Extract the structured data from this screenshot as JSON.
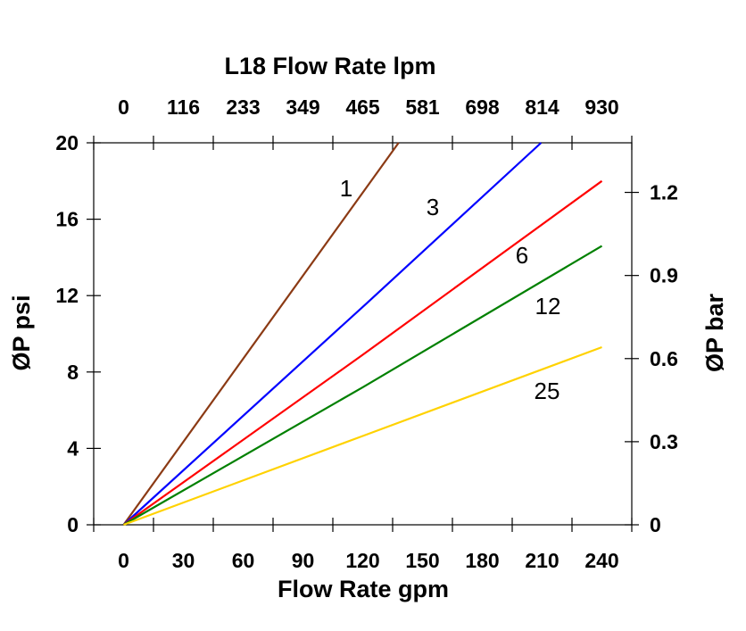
{
  "chart_data": {
    "type": "line",
    "title": "L18 Flow Rate lpm",
    "xlabel": "Flow Rate gpm",
    "ylabel": "ØP psi",
    "y2label": "ØP bar",
    "x_ticks": [
      0,
      30,
      60,
      90,
      120,
      150,
      180,
      210,
      240
    ],
    "x2_ticks": [
      "0",
      "116",
      "233",
      "349",
      "465",
      "581",
      "698",
      "814",
      "930"
    ],
    "y_ticks": [
      0,
      4,
      8,
      12,
      16,
      20
    ],
    "y2_ticks": [
      "0",
      "0.3",
      "0.6",
      "0.9",
      "1.2"
    ],
    "xlim": [
      -15,
      255
    ],
    "ylim": [
      0,
      20
    ],
    "y2lim": [
      0,
      1.379
    ],
    "grid": false,
    "series": [
      {
        "name": "1",
        "color": "#8B3A14",
        "x": [
          0,
          138
        ],
        "y": [
          0,
          20
        ]
      },
      {
        "name": "3",
        "color": "#0000FF",
        "x": [
          0,
          122,
          209.5
        ],
        "y": [
          0,
          11.6,
          20
        ]
      },
      {
        "name": "6",
        "color": "#FF0000",
        "x": [
          0,
          120,
          240
        ],
        "y": [
          0,
          8.9,
          18
        ]
      },
      {
        "name": "12",
        "color": "#008000",
        "x": [
          0,
          120,
          240
        ],
        "y": [
          0,
          7.2,
          14.6
        ]
      },
      {
        "name": "25",
        "color": "#FFD200",
        "x": [
          0,
          120,
          240
        ],
        "y": [
          0,
          4.65,
          9.3
        ]
      }
    ]
  }
}
